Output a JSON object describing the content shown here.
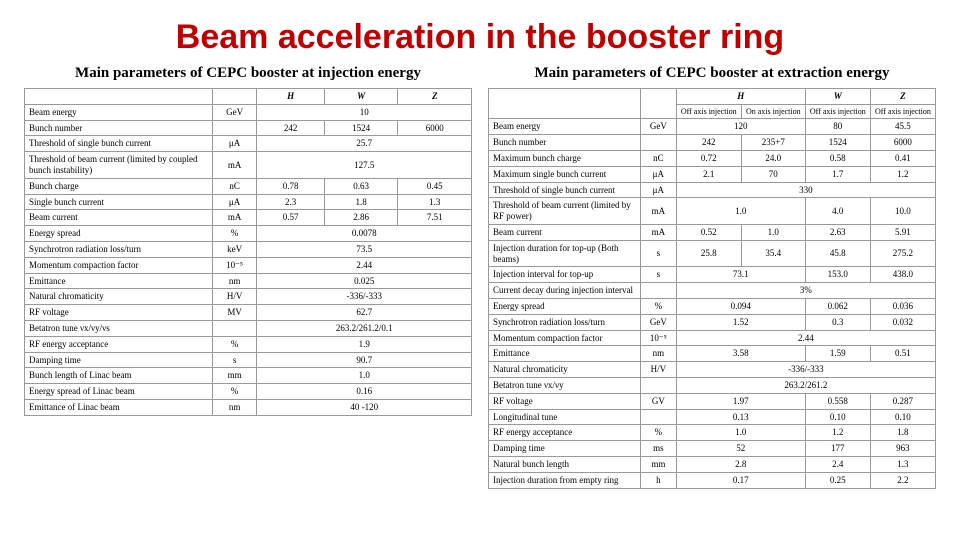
{
  "title": "Beam acceleration in the booster ring",
  "left": {
    "subtitle": "Main parameters of CEPC booster at injection energy",
    "headers": [
      "",
      "",
      "H",
      "W",
      "Z"
    ],
    "rows": [
      {
        "param": "Beam energy",
        "unit": "GeV",
        "h": "",
        "w": "10",
        "z": "",
        "span": 3
      },
      {
        "param": "Bunch number",
        "unit": "",
        "h": "242",
        "w": "1524",
        "z": "6000"
      },
      {
        "param": "Threshold of single bunch current",
        "unit": "μA",
        "h": "",
        "w": "25.7",
        "z": "",
        "span": 3
      },
      {
        "param": "Threshold of beam current (limited by coupled bunch instability)",
        "unit": "mA",
        "h": "",
        "w": "127.5",
        "z": "",
        "span": 3
      },
      {
        "param": "Bunch charge",
        "unit": "nC",
        "h": "0.78",
        "w": "0.63",
        "z": "0.45"
      },
      {
        "param": "Single bunch current",
        "unit": "μA",
        "h": "2.3",
        "w": "1.8",
        "z": "1.3"
      },
      {
        "param": "Beam current",
        "unit": "mA",
        "h": "0.57",
        "w": "2.86",
        "z": "7.51"
      },
      {
        "param": "Energy spread",
        "unit": "%",
        "h": "",
        "w": "0.0078",
        "z": "",
        "span": 3
      },
      {
        "param": "Synchrotron radiation loss/turn",
        "unit": "keV",
        "h": "",
        "w": "73.5",
        "z": "",
        "span": 3
      },
      {
        "param": "Momentum compaction factor",
        "unit": "10⁻⁵",
        "h": "",
        "w": "2.44",
        "z": "",
        "span": 3
      },
      {
        "param": "Emittance",
        "unit": "nm",
        "h": "",
        "w": "0.025",
        "z": "",
        "span": 3
      },
      {
        "param": "Natural chromaticity",
        "unit": "H/V",
        "h": "",
        "w": "-336/-333",
        "z": "",
        "span": 3
      },
      {
        "param": "RF voltage",
        "unit": "MV",
        "h": "",
        "w": "62.7",
        "z": "",
        "span": 3
      },
      {
        "param": "Betatron tune νx/νy/νs",
        "unit": "",
        "h": "",
        "w": "263.2/261.2/0.1",
        "z": "",
        "span": 3
      },
      {
        "param": "RF energy acceptance",
        "unit": "%",
        "h": "",
        "w": "1.9",
        "z": "",
        "span": 3
      },
      {
        "param": "Damping time",
        "unit": "s",
        "h": "",
        "w": "90.7",
        "z": "",
        "span": 3
      },
      {
        "param": "Bunch length of Linac beam",
        "unit": "mm",
        "h": "",
        "w": "1.0",
        "z": "",
        "span": 3
      },
      {
        "param": "Energy spread of Linac beam",
        "unit": "%",
        "h": "",
        "w": "0.16",
        "z": "",
        "span": 3
      },
      {
        "param": "Emittance of Linac beam",
        "unit": "nm",
        "h": "",
        "w": "40 -120",
        "z": "",
        "span": 3
      }
    ]
  },
  "right": {
    "subtitle": "Main parameters of CEPC booster at extraction energy",
    "top_headers": [
      "",
      "",
      "H",
      "W",
      "Z"
    ],
    "sub_headers": [
      "Off axis injection",
      "On axis injection",
      "Off axis injection",
      "Off axis injection"
    ],
    "rows": [
      {
        "param": "Beam energy",
        "unit": "GeV",
        "c1": "120",
        "c1span": 2,
        "c3": "80",
        "c4": "45.5"
      },
      {
        "param": "Bunch number",
        "unit": "",
        "c1": "242",
        "c2": "235+7",
        "c3": "1524",
        "c4": "6000"
      },
      {
        "param": "Maximum bunch charge",
        "unit": "nC",
        "c1": "0.72",
        "c2": "24.0",
        "c3": "0.58",
        "c4": "0.41"
      },
      {
        "param": "Maximum single bunch current",
        "unit": "μA",
        "c1": "2.1",
        "c2": "70",
        "c3": "1.7",
        "c4": "1.2"
      },
      {
        "param": "Threshold of single bunch current",
        "unit": "μA",
        "c1": "330",
        "c1span": 4
      },
      {
        "param": "Threshold of beam current (limited by RF power)",
        "unit": "mA",
        "c1": "1.0",
        "c1span": 2,
        "c3": "4.0",
        "c4": "10.0"
      },
      {
        "param": "Beam current",
        "unit": "mA",
        "c1": "0.52",
        "c2": "1.0",
        "c3": "2.63",
        "c4": "5.91"
      },
      {
        "param": "Injection duration for top-up (Both beams)",
        "unit": "s",
        "c1": "25.8",
        "c2": "35.4",
        "c3": "45.8",
        "c4": "275.2"
      },
      {
        "param": "Injection interval for top-up",
        "unit": "s",
        "c1": "73.1",
        "c1span": 2,
        "c3": "153.0",
        "c4": "438.0"
      },
      {
        "param": "Current decay during injection interval",
        "unit": "",
        "c1": "3%",
        "c1span": 4
      },
      {
        "param": "Energy spread",
        "unit": "%",
        "c1": "0.094",
        "c1span": 2,
        "c3": "0.062",
        "c4": "0.036"
      },
      {
        "param": "Synchrotron radiation loss/turn",
        "unit": "GeV",
        "c1": "1.52",
        "c1span": 2,
        "c3": "0.3",
        "c4": "0.032"
      },
      {
        "param": "Momentum compaction factor",
        "unit": "10⁻⁵",
        "c1": "2.44",
        "c1span": 4
      },
      {
        "param": "Emittance",
        "unit": "nm",
        "c1": "3.58",
        "c1span": 2,
        "c3": "1.59",
        "c4": "0.51"
      },
      {
        "param": "Natural chromaticity",
        "unit": "H/V",
        "c1": "-336/-333",
        "c1span": 4
      },
      {
        "param": "Betatron tune νx/νy",
        "unit": "",
        "c1": "263.2/261.2",
        "c1span": 4
      },
      {
        "param": "RF voltage",
        "unit": "GV",
        "c1": "1.97",
        "c1span": 2,
        "c3": "0.558",
        "c4": "0.287"
      },
      {
        "param": "Longitudinal tune",
        "unit": "",
        "c1": "0.13",
        "c1span": 2,
        "c3": "0.10",
        "c4": "0.10"
      },
      {
        "param": "RF energy acceptance",
        "unit": "%",
        "c1": "1.0",
        "c1span": 2,
        "c3": "1.2",
        "c4": "1.8"
      },
      {
        "param": "Damping time",
        "unit": "ms",
        "c1": "52",
        "c1span": 2,
        "c3": "177",
        "c4": "963"
      },
      {
        "param": "Natural bunch length",
        "unit": "mm",
        "c1": "2.8",
        "c1span": 2,
        "c3": "2.4",
        "c4": "1.3"
      },
      {
        "param": "Injection duration from empty ring",
        "unit": "h",
        "c1": "0.17",
        "c1span": 2,
        "c3": "0.25",
        "c4": "2.2"
      }
    ]
  }
}
